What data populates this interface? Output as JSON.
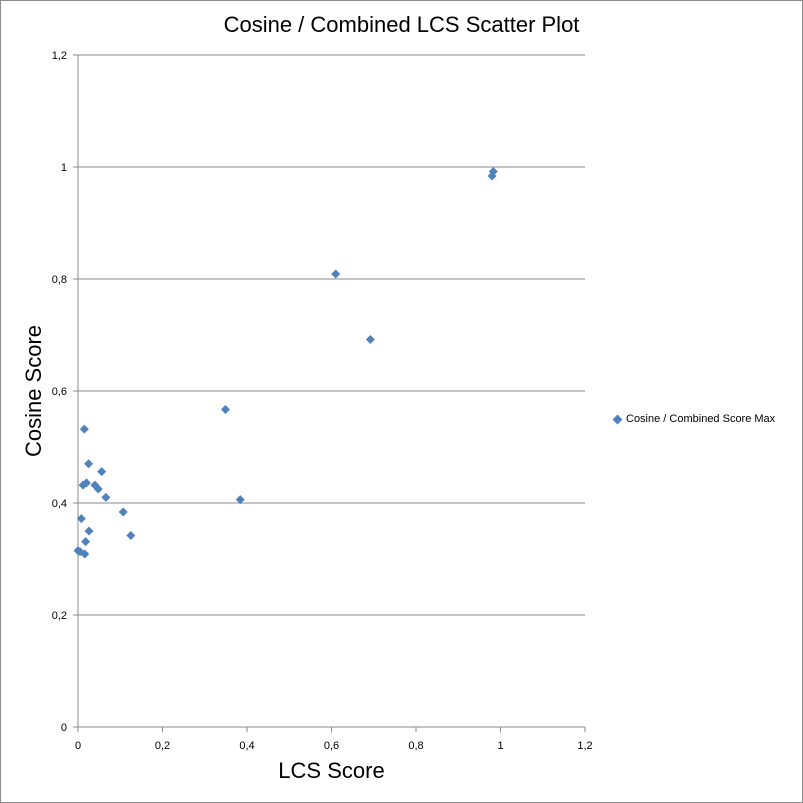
{
  "chart_data": {
    "type": "scatter",
    "title": "Cosine / Combined LCS Scatter Plot",
    "xlabel": "LCS Score",
    "ylabel": "Cosine Score",
    "xlim": [
      0,
      1.2
    ],
    "ylim": [
      0,
      1.2
    ],
    "x_ticks": [
      "0",
      "0,2",
      "0,4",
      "0,6",
      "0,8",
      "1",
      "1,2"
    ],
    "y_ticks": [
      "0",
      "0,2",
      "0,4",
      "0,6",
      "0,8",
      "1",
      "1,2"
    ],
    "grid": "horizontal",
    "legend_position": "right",
    "series": [
      {
        "name": "Cosine / Combined Score Max",
        "color": "#4f81bd",
        "marker": "diamond",
        "points": [
          [
            0.0,
            0.315
          ],
          [
            0.005,
            0.313
          ],
          [
            0.008,
            0.372
          ],
          [
            0.012,
            0.432
          ],
          [
            0.015,
            0.532
          ],
          [
            0.016,
            0.309
          ],
          [
            0.018,
            0.331
          ],
          [
            0.02,
            0.436
          ],
          [
            0.025,
            0.47
          ],
          [
            0.026,
            0.35
          ],
          [
            0.04,
            0.432
          ],
          [
            0.048,
            0.425
          ],
          [
            0.056,
            0.456
          ],
          [
            0.066,
            0.41
          ],
          [
            0.107,
            0.384
          ],
          [
            0.125,
            0.342
          ],
          [
            0.349,
            0.567
          ],
          [
            0.384,
            0.406
          ],
          [
            0.61,
            0.809
          ],
          [
            0.692,
            0.692
          ],
          [
            0.98,
            0.984
          ],
          [
            0.983,
            0.992
          ]
        ]
      }
    ]
  }
}
